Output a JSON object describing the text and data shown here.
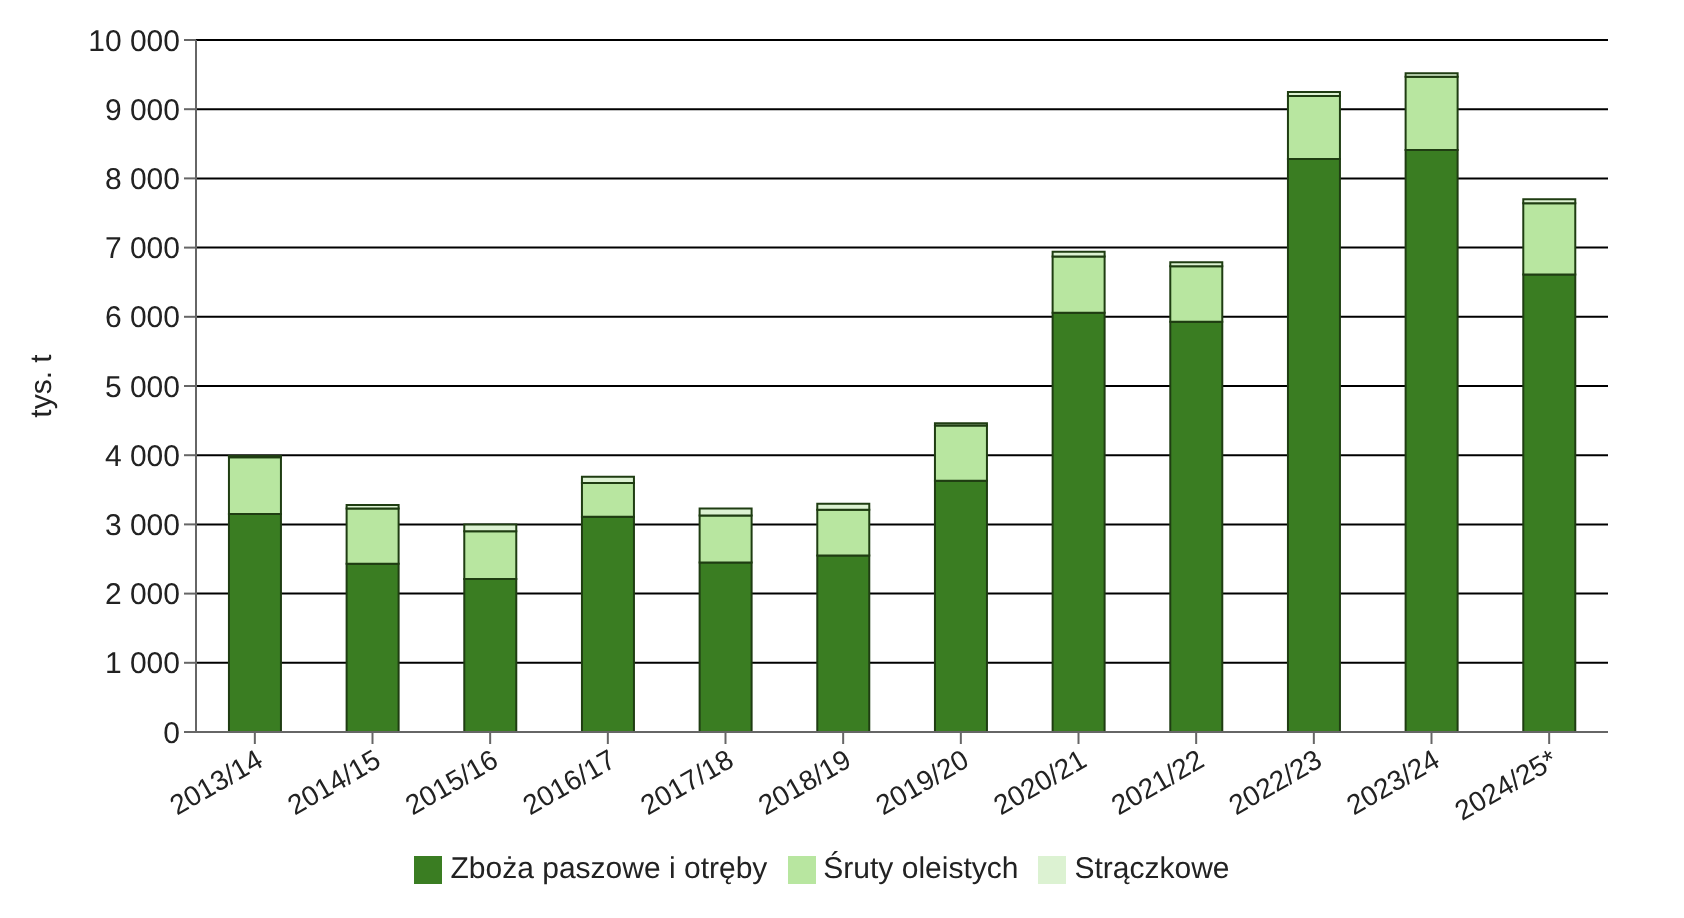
{
  "chart_data": {
    "type": "bar",
    "stacked": true,
    "ylabel": "tys. t",
    "categories": [
      "2013/14",
      "2014/15",
      "2015/16",
      "2016/17",
      "2017/18",
      "2018/19",
      "2019/20",
      "2020/21",
      "2021/22",
      "2022/23",
      "2023/24",
      "2024/25*"
    ],
    "series": [
      {
        "name": "Zboża paszowe i otręby",
        "color": "#3a7d22",
        "values": [
          3150,
          2430,
          2210,
          3110,
          2450,
          2550,
          3630,
          6060,
          5930,
          8280,
          8410,
          6610
        ]
      },
      {
        "name": "Śruty oleistych",
        "color": "#b8e6a0",
        "values": [
          820,
          800,
          690,
          490,
          680,
          660,
          800,
          810,
          800,
          910,
          1060,
          1030
        ]
      },
      {
        "name": "Strączkowe",
        "color": "#dcf2d2",
        "values": [
          20,
          50,
          100,
          90,
          100,
          90,
          30,
          70,
          60,
          60,
          50,
          60
        ]
      }
    ],
    "ylim": [
      0,
      10000
    ],
    "yticks": [
      {
        "value": 0,
        "label": "0"
      },
      {
        "value": 1000,
        "label": "1 000"
      },
      {
        "value": 2000,
        "label": "2 000"
      },
      {
        "value": 3000,
        "label": "3 000"
      },
      {
        "value": 4000,
        "label": "4 000"
      },
      {
        "value": 5000,
        "label": "5 000"
      },
      {
        "value": 6000,
        "label": "6 000"
      },
      {
        "value": 7000,
        "label": "7 000"
      },
      {
        "value": 8000,
        "label": "8 000"
      },
      {
        "value": 9000,
        "label": "9 000"
      },
      {
        "value": 10000,
        "label": "10 000"
      }
    ],
    "grid": "y",
    "legend": "bottom"
  }
}
